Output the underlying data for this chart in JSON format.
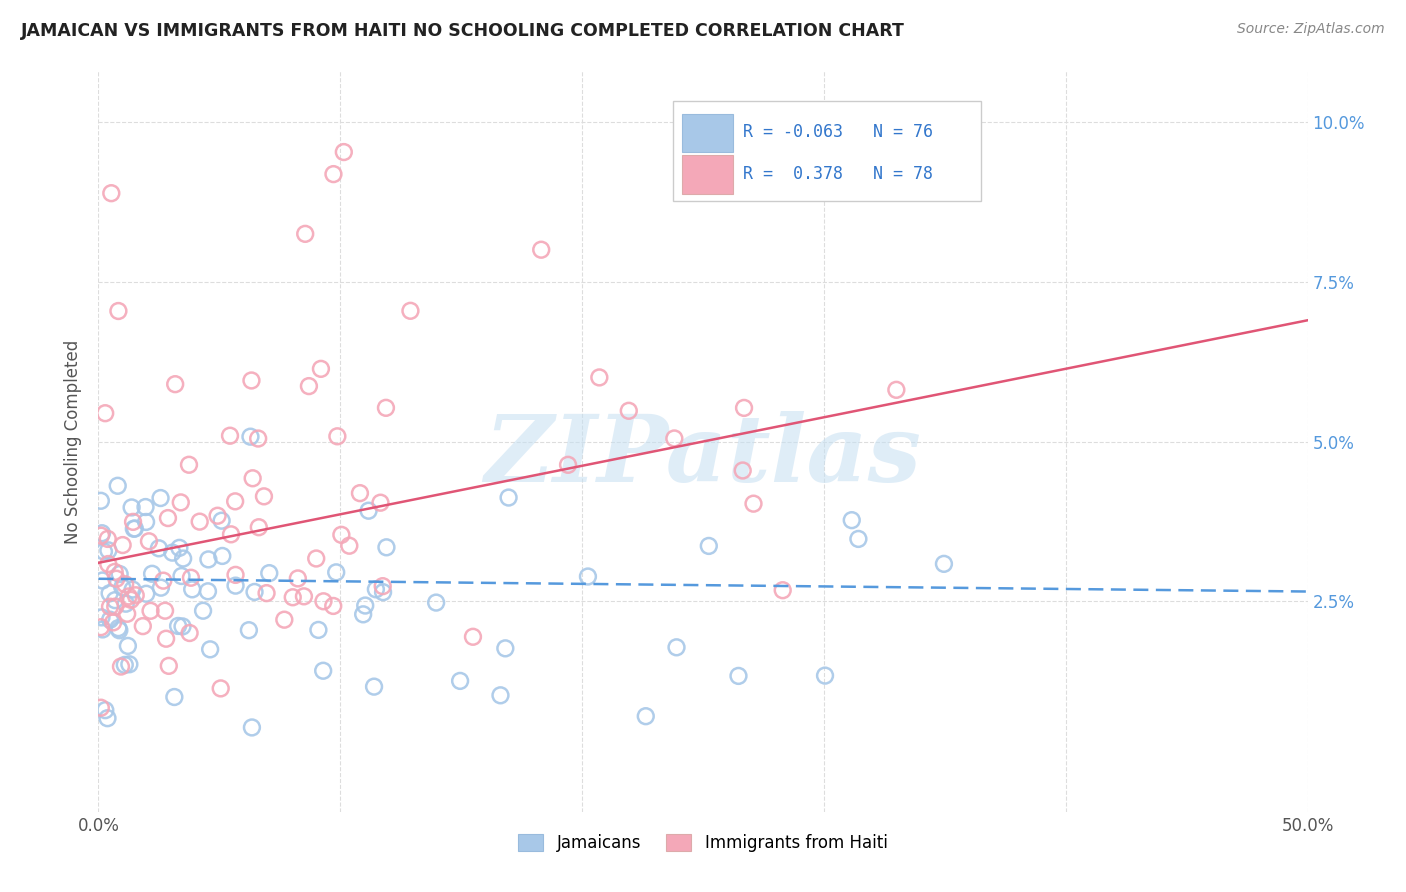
{
  "title": "JAMAICAN VS IMMIGRANTS FROM HAITI NO SCHOOLING COMPLETED CORRELATION CHART",
  "source": "Source: ZipAtlas.com",
  "ylabel": "No Schooling Completed",
  "xlim": [
    0.0,
    0.5
  ],
  "ylim": [
    -0.008,
    0.108
  ],
  "xtick_vals": [
    0.0,
    0.1,
    0.2,
    0.3,
    0.4,
    0.5
  ],
  "xtick_labels": [
    "0.0%",
    "",
    "",
    "",
    "",
    "50.0%"
  ],
  "ytick_vals": [
    0.025,
    0.05,
    0.075,
    0.1
  ],
  "ytick_labels": [
    "2.5%",
    "5.0%",
    "7.5%",
    "10.0%"
  ],
  "legend_r_blue": "-0.063",
  "legend_n_blue": "76",
  "legend_r_pink": "0.378",
  "legend_n_pink": "78",
  "blue_scatter_color": "#a8c8e8",
  "pink_scatter_color": "#f4a8b8",
  "line_blue_color": "#5599dd",
  "line_pink_color": "#e05575",
  "watermark": "ZIPatlas",
  "blue_line_start_y": 0.0285,
  "blue_line_end_y": 0.0265,
  "pink_line_start_y": 0.031,
  "pink_line_end_y": 0.069
}
